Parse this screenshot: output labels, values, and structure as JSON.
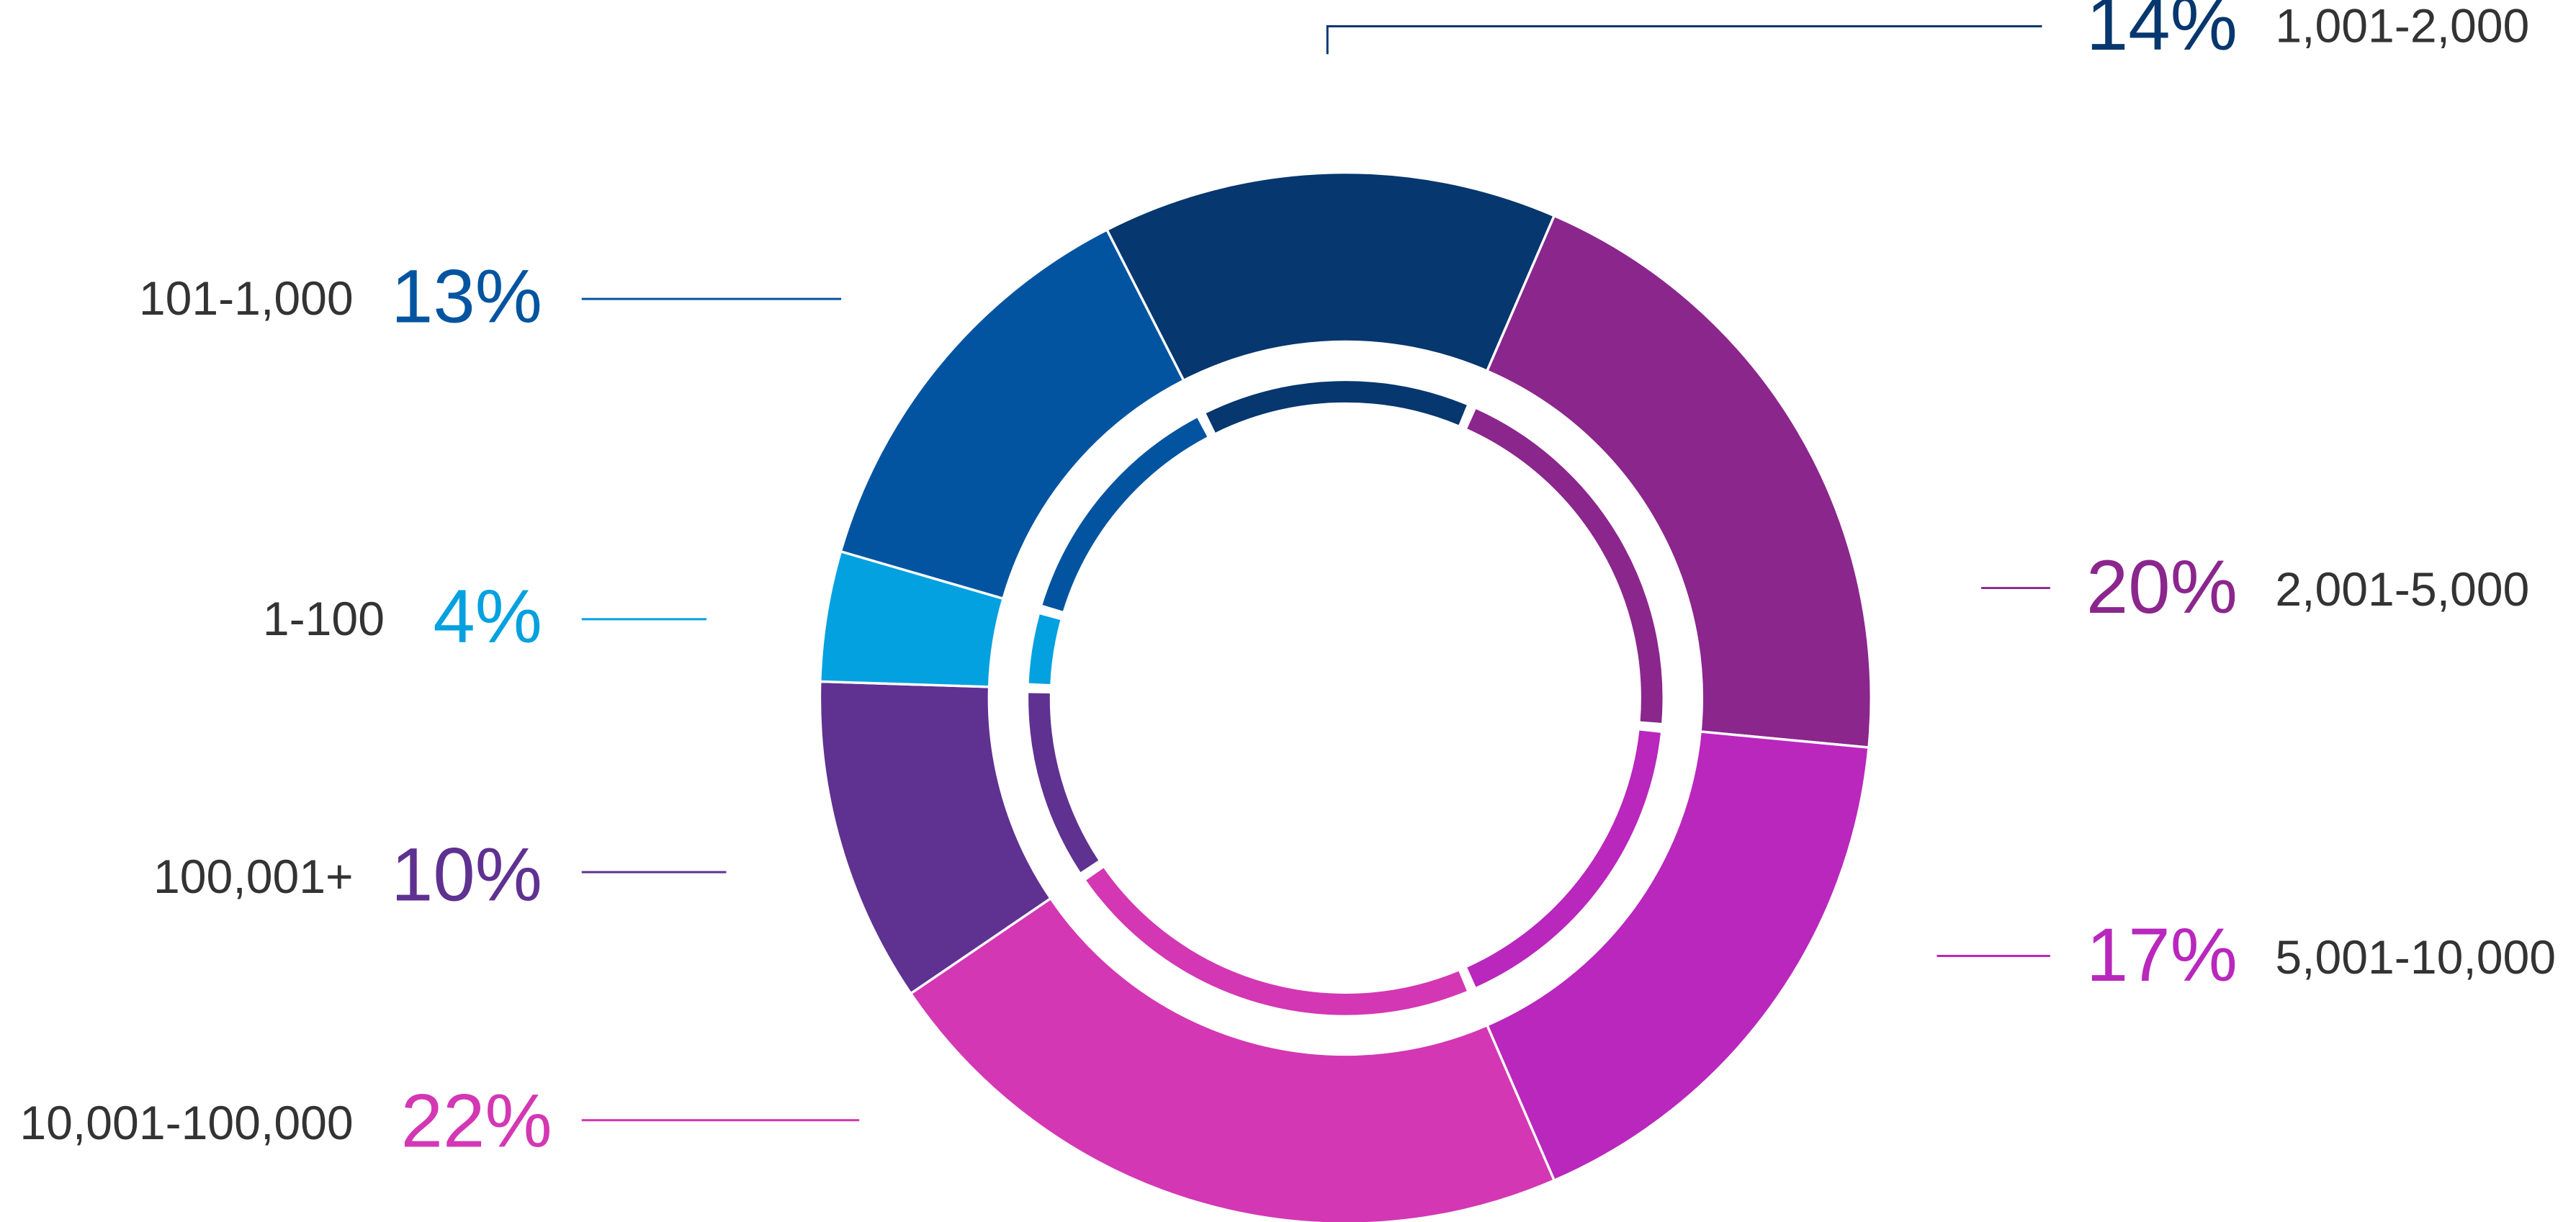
{
  "chart_data": {
    "type": "donut",
    "categories": [
      "1,001-2,000",
      "2,001-5,000",
      "5,001-10,000",
      "10,001-100,000",
      "100,001+",
      "1-100",
      "101-1,000"
    ],
    "values": [
      14,
      20,
      17,
      22,
      10,
      4,
      13
    ],
    "value_labels": [
      "14%",
      "20%",
      "17%",
      "22%",
      "10%",
      "4%",
      "13%"
    ],
    "colors": [
      "#06376e",
      "#8b268d",
      "#b927bd",
      "#d437b3",
      "#5f3191",
      "#04a1e0",
      "#0254a0"
    ]
  }
}
